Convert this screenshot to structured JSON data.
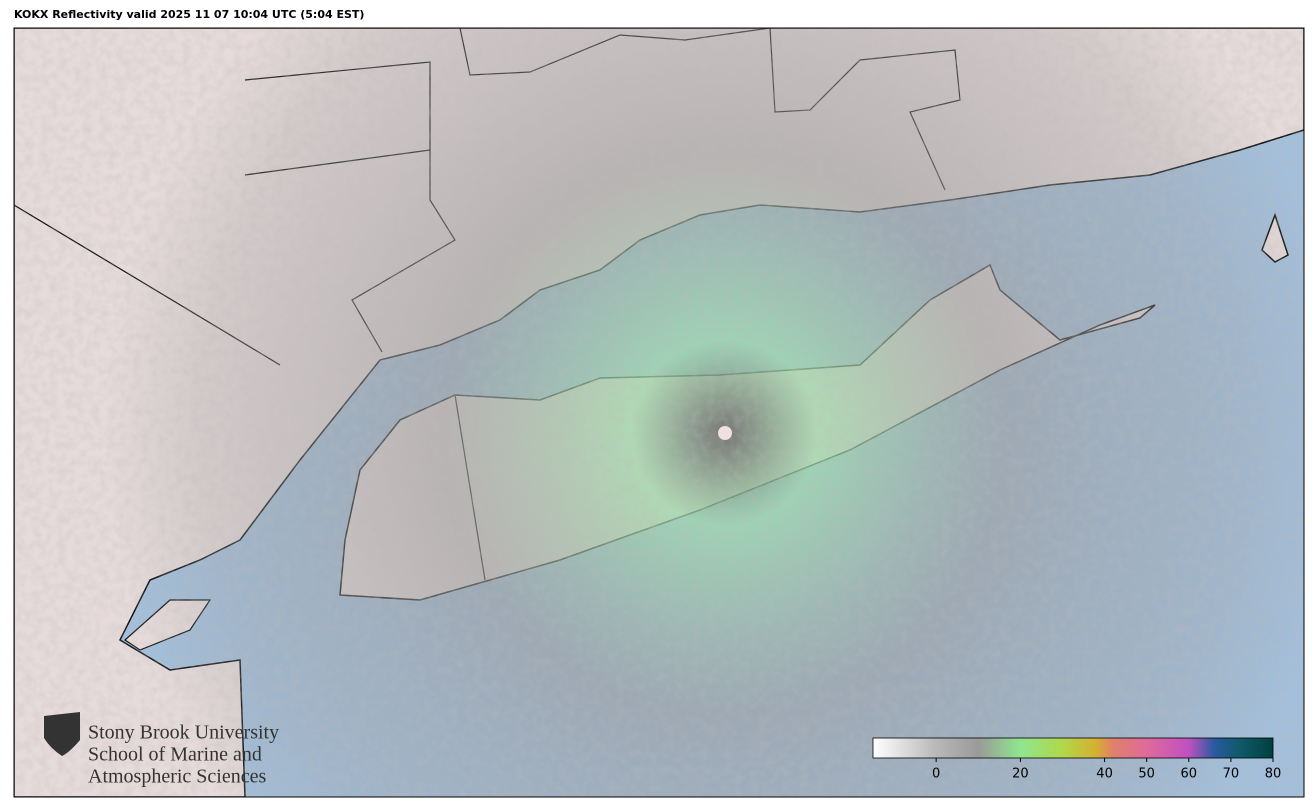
{
  "title": "KOKX Reflectivity valid 2025 11 07 10:04 UTC (5:04 EST)",
  "logo": {
    "lines": [
      "Stony Brook University",
      "School of Marine and",
      "Atmospheric Sciences"
    ]
  },
  "colorbar": {
    "range": [
      -15,
      80
    ],
    "ticks": [
      0,
      20,
      40,
      50,
      60,
      70,
      80
    ],
    "stops": [
      {
        "value": -15,
        "color": "#ffffff"
      },
      {
        "value": 0,
        "color": "#b8b8b8"
      },
      {
        "value": 10,
        "color": "#9a9a9a"
      },
      {
        "value": 20,
        "color": "#8ee68e"
      },
      {
        "value": 30,
        "color": "#b0d84a"
      },
      {
        "value": 38,
        "color": "#d6b030"
      },
      {
        "value": 42,
        "color": "#e0806a"
      },
      {
        "value": 50,
        "color": "#e06a9a"
      },
      {
        "value": 60,
        "color": "#c050c0"
      },
      {
        "value": 66,
        "color": "#2a5aa0"
      },
      {
        "value": 72,
        "color": "#105a6a"
      },
      {
        "value": 80,
        "color": "#004040"
      }
    ]
  }
}
